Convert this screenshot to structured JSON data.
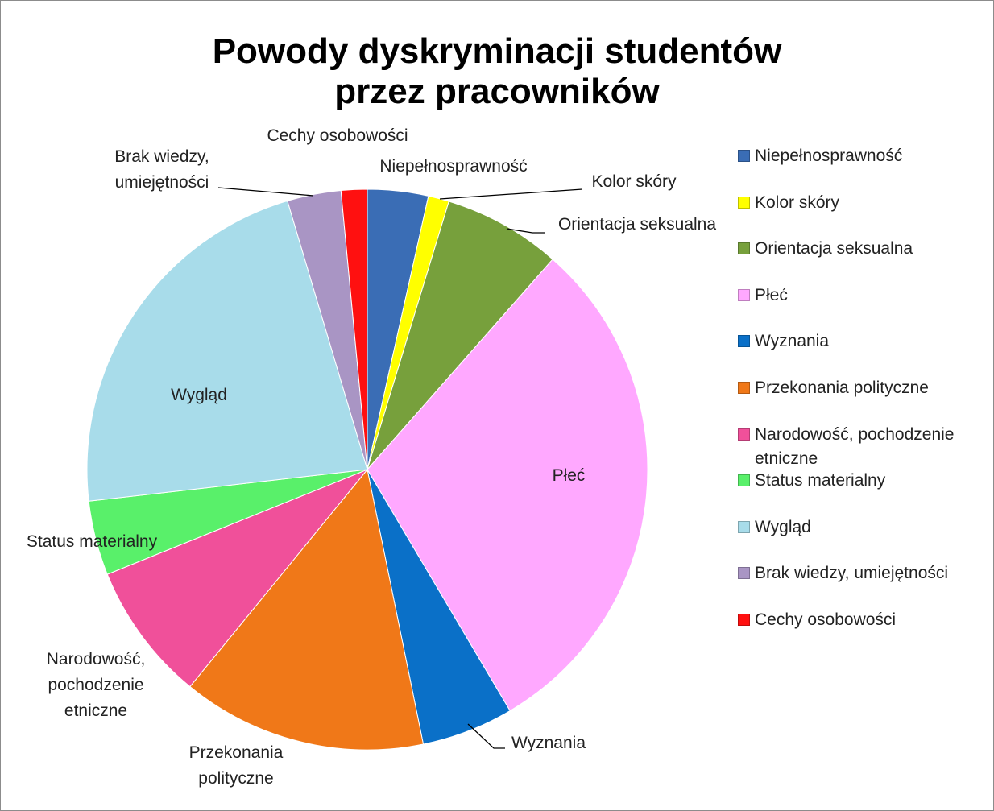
{
  "chart_data": {
    "type": "pie",
    "title": "Powody dyskryminacji studentów przez pracowników",
    "categories": [
      "Niepełnosprawność",
      "Kolor skóry",
      "Orientacja seksualna",
      "Płeć",
      "Wyznania",
      "Przekonania polityczne",
      "Narodowość, pochodzenie etniczne",
      "Status materialny",
      "Wygląd",
      "Brak wiedzy, umiejętności",
      "Cechy osobowości"
    ],
    "values": [
      3.5,
      1.2,
      6.8,
      30,
      5.3,
      14.1,
      8,
      4.3,
      22.2,
      3.1,
      1.5
    ],
    "colors": [
      "#3a6db5",
      "#ffff00",
      "#77a03c",
      "#ffa8ff",
      "#0a70c8",
      "#f07818",
      "#f0509a",
      "#59f06a",
      "#a8dcea",
      "#a995c4",
      "#ff1010"
    ],
    "legend": "right"
  }
}
